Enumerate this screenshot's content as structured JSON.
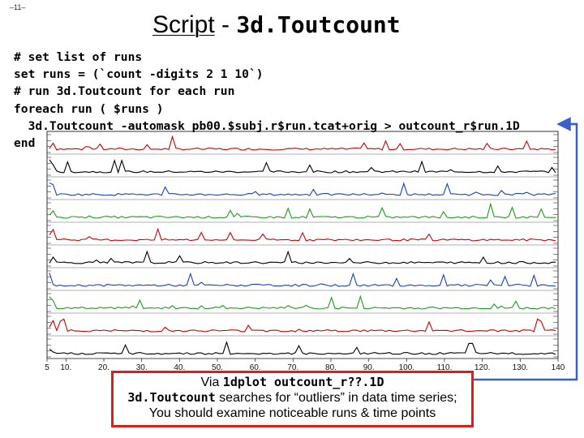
{
  "slide": {
    "number": "–11–"
  },
  "title": {
    "part1": "Script",
    "sep": " - ",
    "part2": "3d.Toutcount"
  },
  "script_lines": [
    "# set list of runs",
    "set runs = (`count -digits 2 1 10`)",
    "# run 3d.Toutcount for each run",
    "foreach run ( $runs )",
    "  3d.Toutcount -automask pb00.$subj.r$run.tcat+orig > outcount_r$run.1D",
    "end"
  ],
  "plot": {
    "x_ticks": [
      "5",
      "10.",
      "20.",
      "30.",
      "40.",
      "50.",
      "60.",
      "70.",
      "80.",
      "90.",
      "100.",
      "110.",
      "120.",
      "130.",
      "140"
    ],
    "row_colors": [
      "#cc0000",
      "#000000",
      "#1a3fbf",
      "#1a9c1a",
      "#cc0000",
      "#000000",
      "#1a3fbf",
      "#1a9c1a",
      "#cc0000",
      "#000000"
    ]
  },
  "callout": {
    "line1_prefix": "Via ",
    "line1_code": "1dplot outcount_r??.1D",
    "line2_code": "3d.Toutcount",
    "line2_text": " searches for “outliers” in data time series;",
    "line3": "You should examine noticeable runs & time points"
  },
  "colors": {
    "arrow": "#3a5fcd",
    "callout_border": "#e21a1a"
  }
}
